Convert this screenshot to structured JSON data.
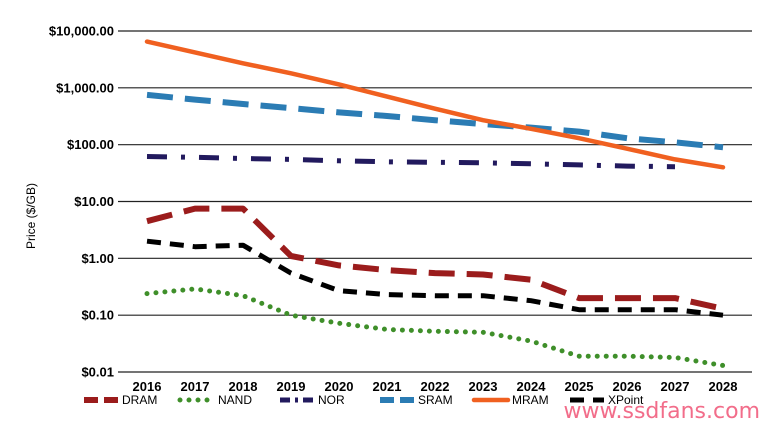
{
  "chart_data": {
    "type": "line",
    "title": "",
    "xlabel": "",
    "ylabel": "Price ($/GB)",
    "y_scale": "log",
    "ylim": [
      0.01,
      10000
    ],
    "y_tick_values": [
      0.01,
      0.1,
      1,
      10,
      100,
      1000,
      10000
    ],
    "y_tick_labels": [
      "$0.01",
      "$0.10",
      "$1.00",
      "$10.00",
      "$100.00",
      "$1,000.00",
      "$10,000.00"
    ],
    "x": [
      "2016",
      "2017",
      "2018",
      "2019",
      "2020",
      "2021",
      "2022",
      "2023",
      "2024",
      "2025",
      "2026",
      "2027",
      "2028"
    ],
    "grid": "horizontal",
    "legend_position": "bottom",
    "series": [
      {
        "name": "DRAM",
        "color": "#9b1c1c",
        "dash": "long-dash",
        "values": [
          4.5,
          7.5,
          7.5,
          1.1,
          0.75,
          0.62,
          0.55,
          0.52,
          0.42,
          0.2,
          0.2,
          0.2,
          0.13
        ]
      },
      {
        "name": "NAND",
        "color": "#3f8f2a",
        "dash": "dot",
        "values": [
          0.24,
          0.29,
          0.22,
          0.1,
          0.072,
          0.056,
          0.052,
          0.05,
          0.035,
          0.019,
          0.019,
          0.018,
          0.013
        ]
      },
      {
        "name": "NOR",
        "color": "#221a5e",
        "dash": "dash-dot",
        "values": [
          62,
          60,
          57,
          55,
          52,
          50,
          49,
          48,
          46,
          44,
          42,
          41,
          null
        ]
      },
      {
        "name": "SRAM",
        "color": "#2b7cb4",
        "dash": "long-dash",
        "values": [
          750,
          620,
          520,
          440,
          370,
          320,
          270,
          230,
          200,
          170,
          130,
          110,
          90
        ]
      },
      {
        "name": "MRAM",
        "color": "#f06020",
        "dash": "solid",
        "values": [
          6500,
          4200,
          2700,
          1800,
          1150,
          700,
          430,
          270,
          190,
          130,
          85,
          55,
          40
        ]
      },
      {
        "name": "XPoint",
        "color": "#000000",
        "dash": "dash",
        "values": [
          2.0,
          1.6,
          1.7,
          0.55,
          0.27,
          0.23,
          0.22,
          0.22,
          0.18,
          0.125,
          0.125,
          0.125,
          0.1
        ]
      }
    ]
  },
  "watermark": "www.ssdfans.com"
}
